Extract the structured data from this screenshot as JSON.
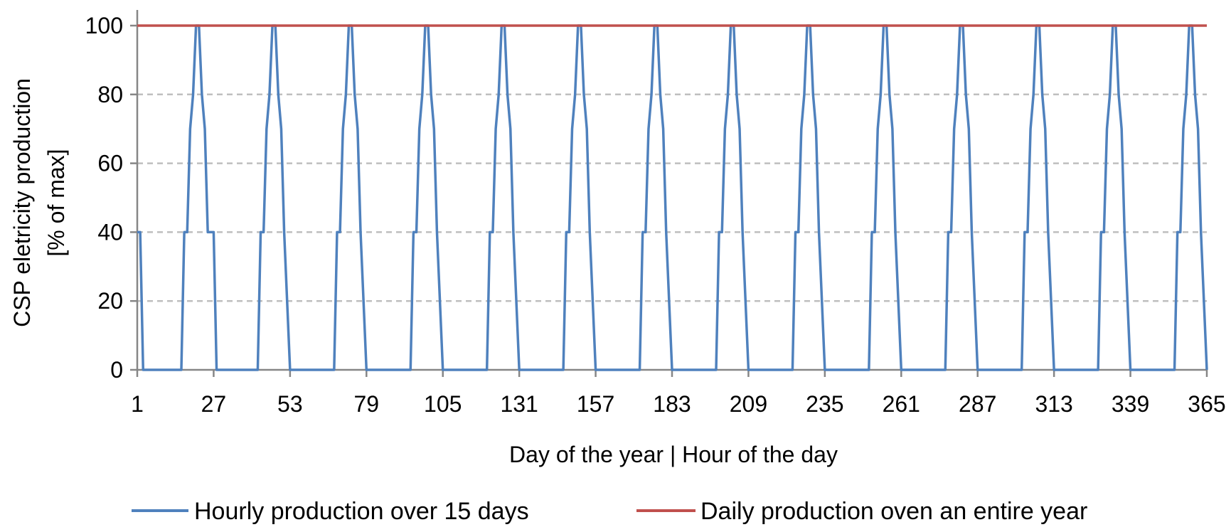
{
  "chart_data": {
    "type": "line",
    "title": "",
    "xlabel": "Day of the year | Hour of the day",
    "ylabel_line1": "CSP eletricity production",
    "ylabel_line2": "[% of max]",
    "xlim": [
      1,
      365
    ],
    "ylim": [
      0,
      100
    ],
    "x_ticks": [
      1,
      27,
      53,
      79,
      105,
      131,
      157,
      183,
      209,
      235,
      261,
      287,
      313,
      339,
      365
    ],
    "y_ticks": [
      0,
      20,
      40,
      60,
      80,
      100
    ],
    "grid": "horizontal dashed",
    "legend_position": "bottom",
    "colors": {
      "hourly": "#4F81BD",
      "daily": "#C0504D",
      "axis": "#868686",
      "grid": "#BFBFBF"
    },
    "series": [
      {
        "name": "Hourly production over 15 days",
        "x": [
          1,
          2,
          3,
          16,
          17,
          18,
          19,
          20,
          21,
          22,
          23,
          24,
          25,
          27,
          28,
          42,
          43,
          44,
          45,
          46,
          47,
          48,
          49,
          50,
          51,
          53,
          54,
          68,
          69,
          70,
          71,
          72,
          73,
          74,
          75,
          76,
          77,
          79,
          80,
          94,
          95,
          96,
          97,
          98,
          99,
          100,
          101,
          102,
          103,
          105,
          106,
          120,
          121,
          122,
          123,
          124,
          125,
          126,
          127,
          128,
          129,
          131,
          132,
          146,
          147,
          148,
          149,
          150,
          151,
          152,
          153,
          154,
          155,
          157,
          158,
          172,
          173,
          174,
          175,
          176,
          177,
          178,
          179,
          180,
          181,
          183,
          184,
          198,
          199,
          200,
          201,
          202,
          203,
          204,
          205,
          206,
          207,
          209,
          210,
          224,
          225,
          226,
          227,
          228,
          229,
          230,
          231,
          232,
          233,
          235,
          236,
          250,
          251,
          252,
          253,
          254,
          255,
          256,
          257,
          258,
          259,
          261,
          262,
          276,
          277,
          278,
          279,
          280,
          281,
          282,
          283,
          284,
          285,
          287,
          288,
          302,
          303,
          304,
          305,
          306,
          307,
          308,
          309,
          310,
          311,
          313,
          314,
          328,
          329,
          330,
          331,
          332,
          333,
          334,
          335,
          336,
          337,
          339,
          340,
          354,
          355,
          356,
          357,
          358,
          359,
          360,
          361,
          362,
          363,
          365
        ],
        "values": [
          40,
          40,
          0,
          0,
          40,
          40,
          70,
          80,
          100,
          100,
          80,
          70,
          40,
          40,
          0,
          0,
          40,
          40,
          70,
          80,
          100,
          100,
          80,
          70,
          40,
          0,
          0,
          0,
          40,
          40,
          70,
          80,
          100,
          100,
          80,
          70,
          40,
          0,
          0,
          0,
          40,
          40,
          70,
          80,
          100,
          100,
          80,
          70,
          40,
          0,
          0,
          0,
          40,
          40,
          70,
          80,
          100,
          100,
          80,
          70,
          40,
          0,
          0,
          0,
          40,
          40,
          70,
          80,
          100,
          100,
          80,
          70,
          40,
          0,
          0,
          0,
          40,
          40,
          70,
          80,
          100,
          100,
          80,
          70,
          40,
          0,
          0,
          0,
          40,
          40,
          70,
          80,
          100,
          100,
          80,
          70,
          40,
          0,
          0,
          0,
          40,
          40,
          70,
          80,
          100,
          100,
          80,
          70,
          40,
          0,
          0,
          0,
          40,
          40,
          70,
          80,
          100,
          100,
          80,
          70,
          40,
          0,
          0,
          0,
          40,
          40,
          70,
          80,
          100,
          100,
          80,
          70,
          40,
          0,
          0,
          0,
          40,
          40,
          70,
          80,
          100,
          100,
          80,
          70,
          40,
          0,
          0,
          0,
          40,
          40,
          70,
          80,
          100,
          100,
          80,
          70,
          40,
          0,
          0,
          0,
          40,
          40,
          70,
          80,
          100,
          100,
          80,
          70,
          40,
          0
        ]
      },
      {
        "name": "Daily production oven an entire year",
        "x": [
          1,
          365
        ],
        "values": [
          100,
          100
        ]
      }
    ]
  }
}
